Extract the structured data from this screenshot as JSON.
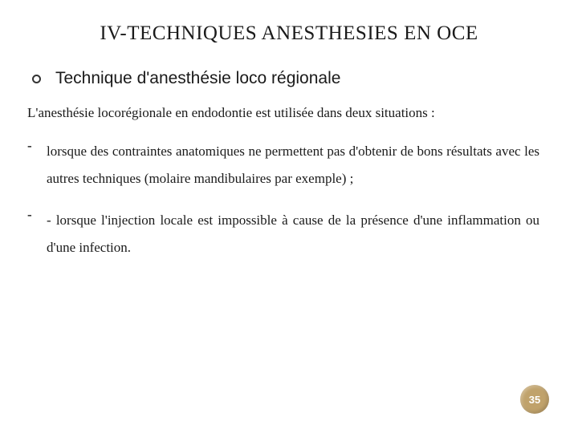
{
  "title": "IV-TECHNIQUES ANESTHESIES EN OCE",
  "subtitle": "Technique d'anesthésie loco régionale",
  "intro": "L'anesthésie locorégionale en endodontie est utilisée dans deux situations :",
  "items": [
    "lorsque des contraintes anatomiques ne permettent pas d'obtenir de bons résultats avec les autres techniques (molaire mandibulaires par exemple) ;",
    "- lorsque l'injection locale est impossible à cause de la présence d'une inflammation ou d'une infection."
  ],
  "page_number": "35",
  "colors": {
    "text": "#1a1a1a",
    "badge_bg": "#c0a26b",
    "badge_text": "#ffffff",
    "background": "#ffffff"
  }
}
